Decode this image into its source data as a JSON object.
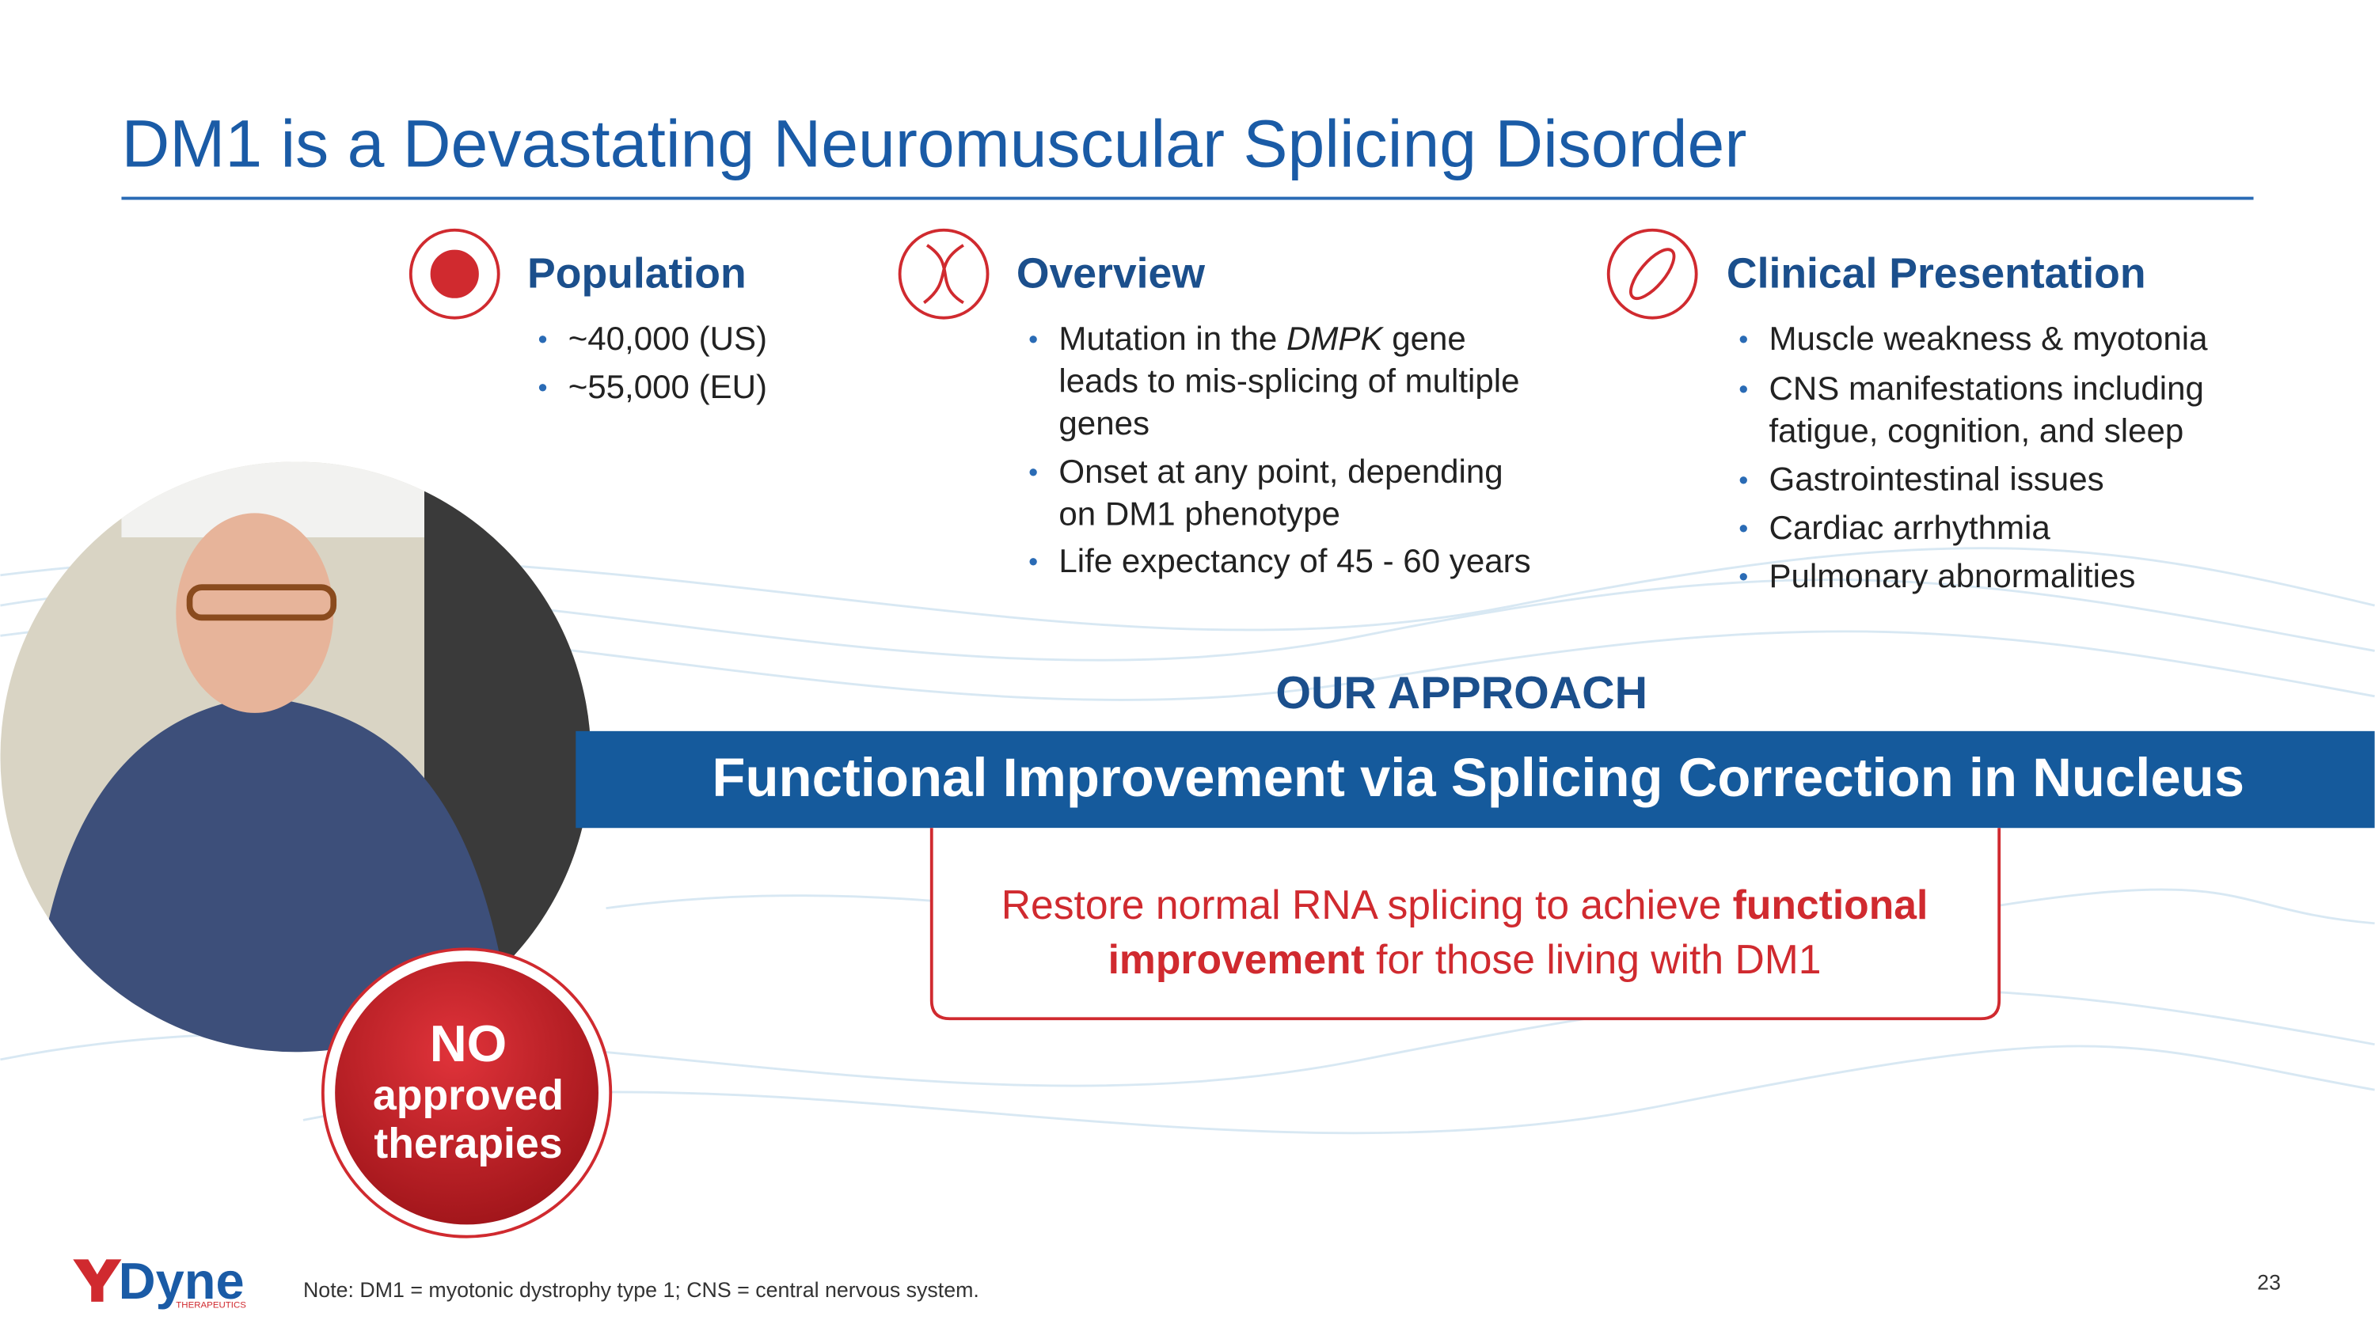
{
  "header": {
    "title": "DM1 is a Devastating Neuromuscular Splicing Disorder"
  },
  "columns": [
    {
      "heading": "Population",
      "bullets": [
        [
          [
            "~40,000 (US)"
          ]
        ],
        [
          [
            "~55,000 (EU)"
          ]
        ]
      ]
    },
    {
      "heading": "Overview",
      "bullets": [
        [
          [
            "Mutation in the ",
            "DMPK",
            " gene"
          ],
          [
            "leads to mis-splicing of multiple"
          ],
          [
            "genes"
          ]
        ],
        [
          [
            "Onset at any point, depending"
          ],
          [
            "on DM1 phenotype"
          ]
        ],
        [
          [
            "Life expectancy of 45 - 60 years"
          ]
        ]
      ]
    },
    {
      "heading": "Clinical Presentation",
      "bullets": [
        [
          [
            "Muscle weakness & myotonia"
          ]
        ],
        [
          [
            "CNS manifestations including"
          ],
          [
            "fatigue, cognition, and sleep"
          ]
        ],
        [
          [
            "Gastrointestinal issues"
          ]
        ],
        [
          [
            "Cardiac arrhythmia"
          ]
        ],
        [
          [
            "Pulmonary abnormalities"
          ]
        ]
      ]
    }
  ],
  "approach": {
    "label": "OUR APPROACH",
    "banner": "Functional Improvement via Splicing Correction in Nucleus",
    "statement": [
      [
        "Restore normal RNA splicing to achieve ",
        "functional"
      ],
      [
        "improvement",
        " for those living with DM1"
      ]
    ]
  },
  "badge": [
    "NO",
    "approved",
    "therapies"
  ],
  "footer": {
    "logo": "Dyne",
    "logo_sub": "THERAPEUTICS",
    "note": "Note: DM1 = myotonic dystrophy type 1; CNS = central nervous system.",
    "page": "23"
  }
}
